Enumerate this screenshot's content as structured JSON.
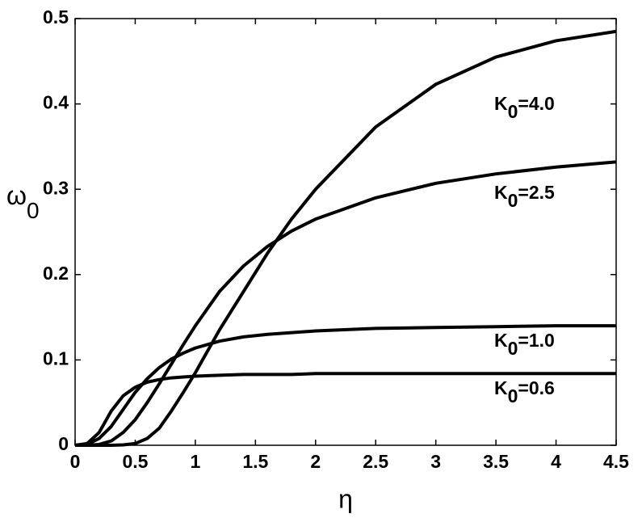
{
  "chart_data": {
    "type": "line",
    "xlabel": "η",
    "ylabel": "ω",
    "ylabel_sub": "0",
    "x": [
      0,
      0.1,
      0.2,
      0.3,
      0.4,
      0.5,
      0.6,
      0.7,
      0.8,
      0.9,
      1.0,
      1.2,
      1.4,
      1.6,
      1.8,
      2.0,
      2.5,
      3.0,
      3.5,
      4.0,
      4.5
    ],
    "series": [
      {
        "name_parts": [
          "K",
          "0",
          "=4.0"
        ],
        "color": "#000000",
        "values": [
          0,
          0,
          0,
          0,
          0.0005,
          0.002,
          0.008,
          0.02,
          0.04,
          0.062,
          0.085,
          0.135,
          0.18,
          0.225,
          0.265,
          0.3,
          0.373,
          0.423,
          0.455,
          0.474,
          0.485
        ]
      },
      {
        "name_parts": [
          "K",
          "0",
          "=2.5"
        ],
        "color": "#000000",
        "values": [
          0,
          0,
          0.001,
          0.005,
          0.015,
          0.03,
          0.05,
          0.072,
          0.095,
          0.118,
          0.14,
          0.18,
          0.21,
          0.233,
          0.251,
          0.265,
          0.29,
          0.307,
          0.318,
          0.326,
          0.332
        ]
      },
      {
        "name_parts": [
          "K",
          "0",
          "=1.0"
        ],
        "color": "#000000",
        "values": [
          0,
          0.001,
          0.008,
          0.022,
          0.042,
          0.062,
          0.078,
          0.091,
          0.101,
          0.108,
          0.114,
          0.122,
          0.127,
          0.13,
          0.132,
          0.134,
          0.137,
          0.138,
          0.139,
          0.14,
          0.14
        ]
      },
      {
        "name_parts": [
          "K",
          "0",
          "=0.6"
        ],
        "color": "#000000",
        "values": [
          0,
          0.002,
          0.015,
          0.04,
          0.058,
          0.068,
          0.074,
          0.077,
          0.079,
          0.08,
          0.081,
          0.082,
          0.083,
          0.083,
          0.083,
          0.084,
          0.084,
          0.084,
          0.084,
          0.084,
          0.084
        ]
      }
    ],
    "xlim": [
      0,
      4.5
    ],
    "xticks": [
      0,
      0.5,
      1,
      1.5,
      2,
      2.5,
      3,
      3.5,
      4,
      4.5
    ],
    "ylim": [
      0,
      0.5
    ],
    "yticks": [
      0,
      0.1,
      0.2,
      0.3,
      0.4,
      0.5
    ]
  }
}
